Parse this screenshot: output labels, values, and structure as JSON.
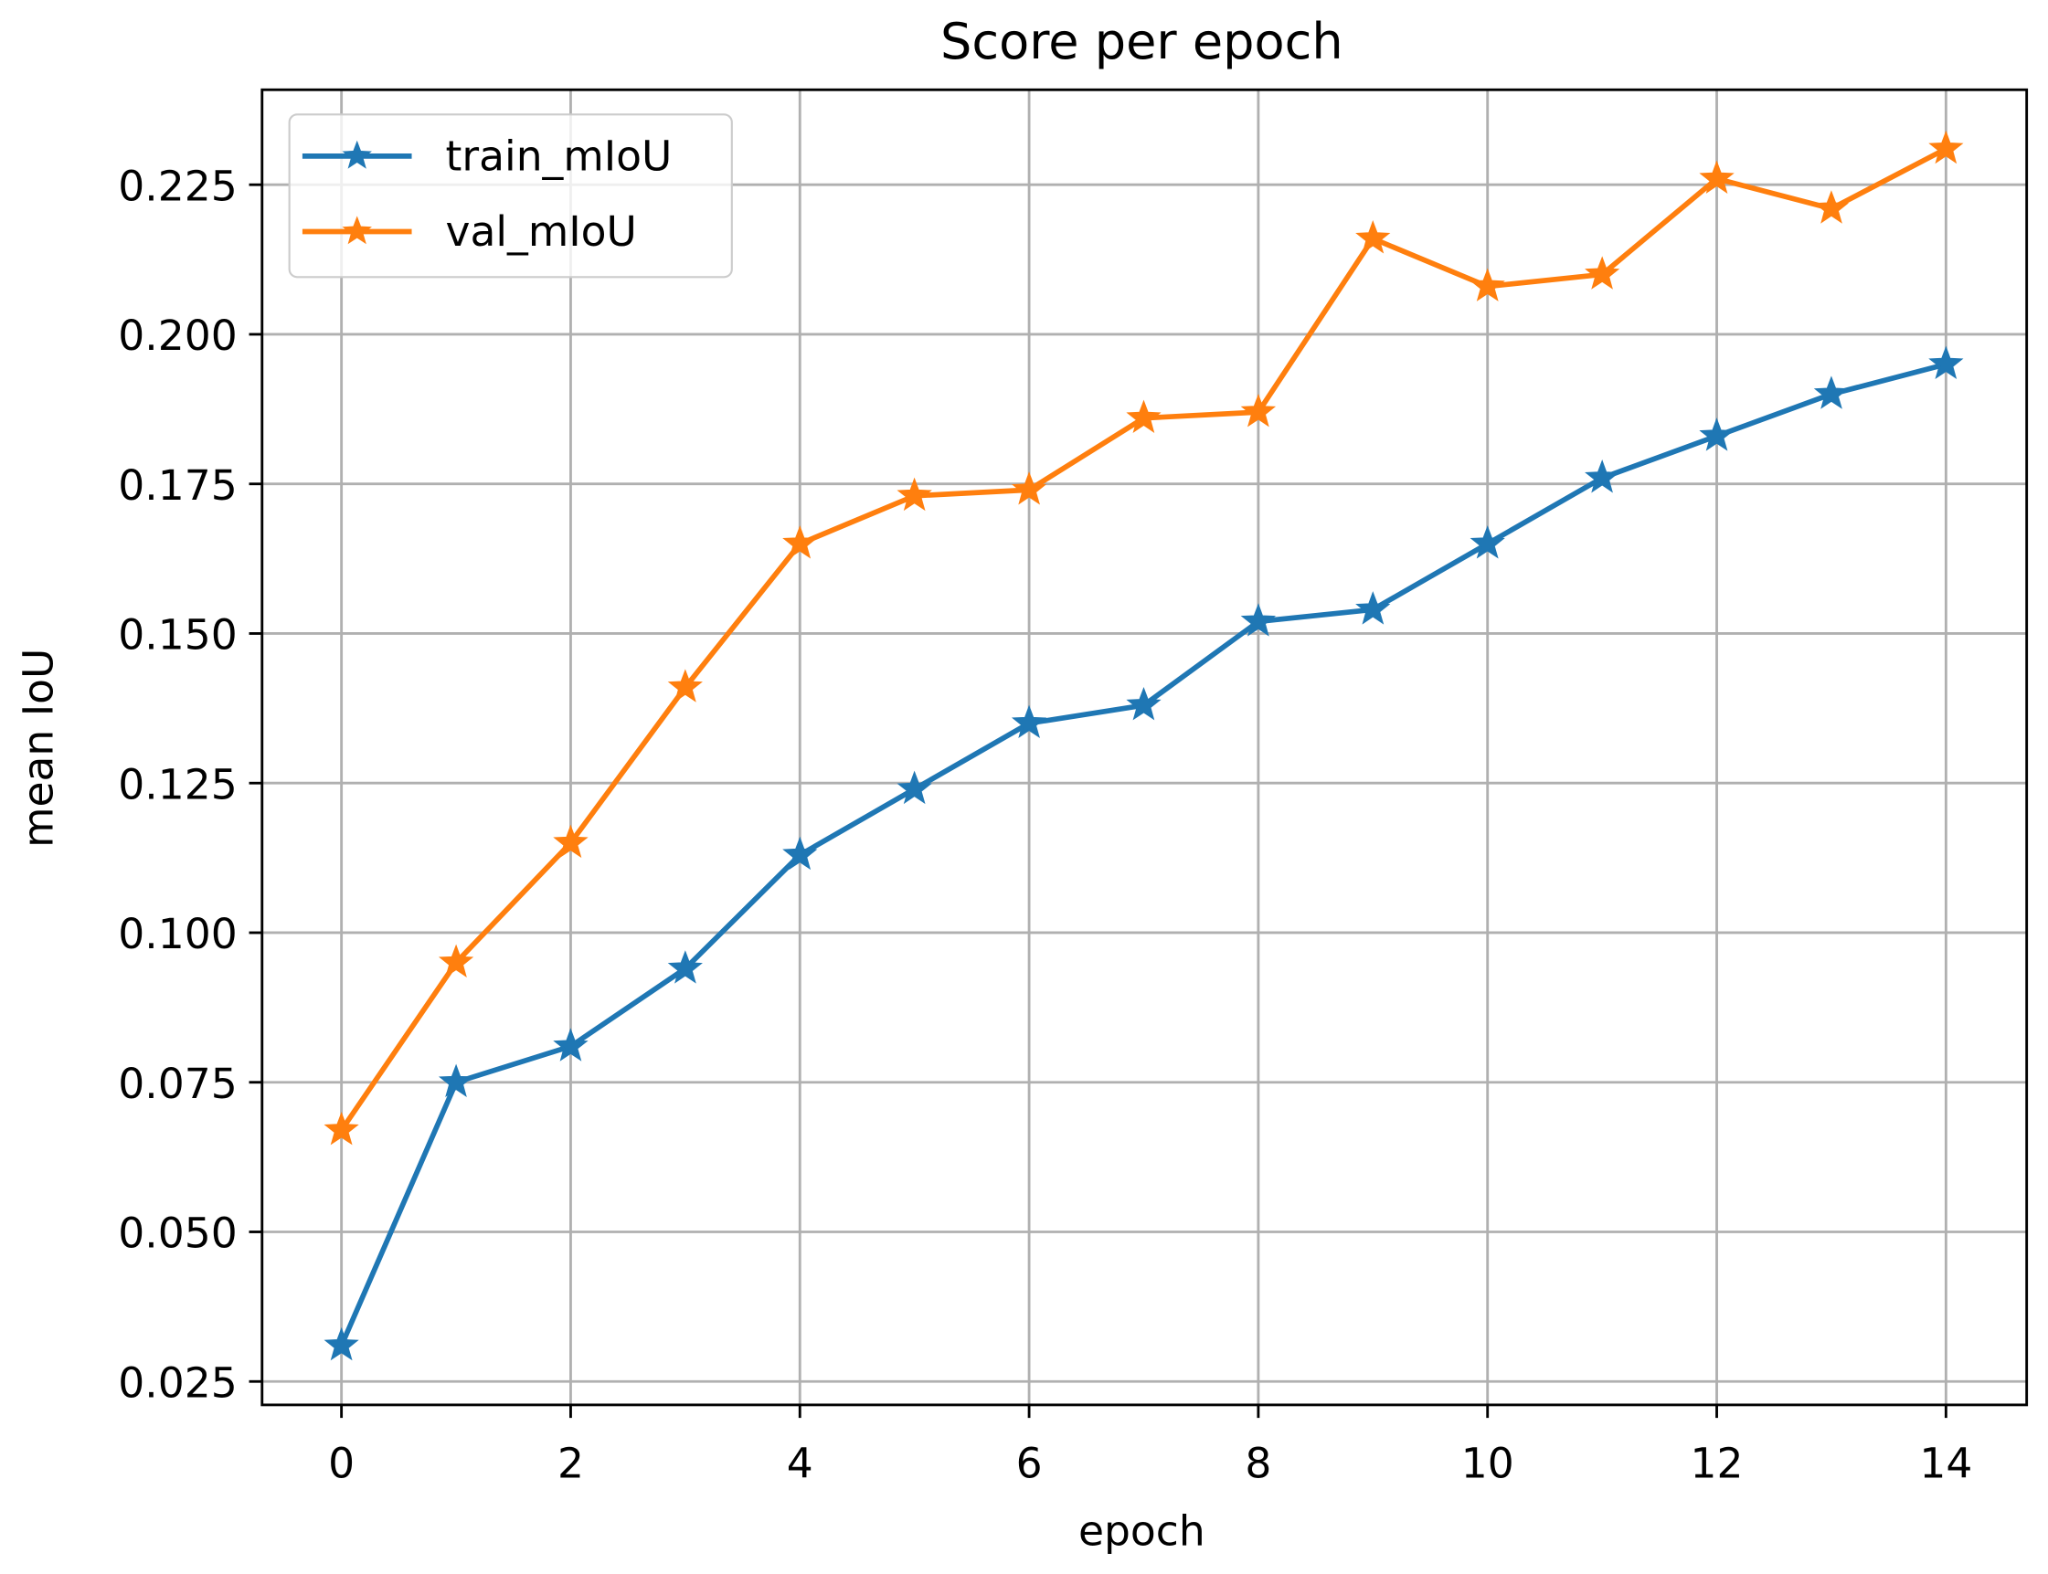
{
  "chart_data": {
    "type": "line",
    "title": "Score per epoch",
    "xlabel": "epoch",
    "ylabel": "mean IoU",
    "x": [
      0,
      1,
      2,
      3,
      4,
      5,
      6,
      7,
      8,
      9,
      10,
      11,
      12,
      13,
      14
    ],
    "xticks": [
      "0",
      "2",
      "4",
      "6",
      "8",
      "10",
      "12",
      "14"
    ],
    "yticks": [
      "0.025",
      "0.050",
      "0.075",
      "0.100",
      "0.125",
      "0.150",
      "0.175",
      "0.200",
      "0.225"
    ],
    "xlim": [
      -0.7,
      14.7
    ],
    "ylim": [
      0.021,
      0.242
    ],
    "grid": true,
    "legend_position": "upper left",
    "series": [
      {
        "name": "train_mIoU",
        "color": "#1f77b4",
        "marker": "star",
        "values": [
          0.031,
          0.075,
          0.081,
          0.094,
          0.113,
          0.124,
          0.135,
          0.138,
          0.152,
          0.154,
          0.165,
          0.176,
          0.183,
          0.19,
          0.195
        ]
      },
      {
        "name": "val_mIoU",
        "color": "#ff7f0e",
        "marker": "star",
        "values": [
          0.067,
          0.095,
          0.115,
          0.141,
          0.165,
          0.173,
          0.174,
          0.186,
          0.187,
          0.216,
          0.208,
          0.21,
          0.226,
          0.221,
          0.231
        ]
      }
    ]
  }
}
